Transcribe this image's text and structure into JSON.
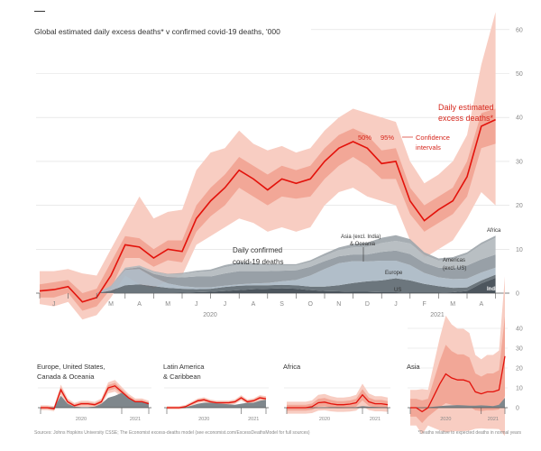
{
  "title": "Global estimated daily excess deaths* v confirmed covid-19 deaths, '000",
  "annotations": {
    "excess1": "Daily estimated",
    "excess2": "excess deaths*",
    "ci50": "50%",
    "ci95": "95%",
    "ci1": "Confidence",
    "ci2": "intervals",
    "conf1": "Daily confirmed",
    "conf2": "covid-19 deaths",
    "asia1": "Asia (excl. India)",
    "asia2": "& Oceania",
    "europe": "Europe",
    "amer1": "Americas",
    "amer2": "(excl. US)",
    "us": "US",
    "africa": "Africa",
    "india": "India"
  },
  "source": "Sources: Johns Hopkins University CSSE; The Economist excess-deaths model (see economist.com/ExcessDeathsModel for full sources)",
  "footnote": "*Deaths relative to expected deaths in normal years",
  "colors": {
    "line": "#e3120b",
    "band50": "#f2a797",
    "band95": "#f8cdc2",
    "us": "#5f6a72",
    "europe": "#aab9c4",
    "americas": "#8f989f",
    "asia": "#b3babe",
    "africa": "#9ea6ab",
    "india": "#3e4850"
  },
  "chart_data": [
    {
      "type": "area",
      "title": "Global estimated daily excess deaths* v confirmed covid-19 deaths, '000",
      "ylim": [
        -5,
        65
      ],
      "yticks": [
        0,
        10,
        20,
        30,
        40,
        50,
        60
      ],
      "grid": true,
      "x": [
        "2020-01-01",
        "2020-01-15",
        "2020-02-01",
        "2020-02-15",
        "2020-03-01",
        "2020-03-15",
        "2020-04-01",
        "2020-04-15",
        "2020-05-01",
        "2020-05-15",
        "2020-06-01",
        "2020-06-15",
        "2020-07-01",
        "2020-07-15",
        "2020-08-01",
        "2020-08-15",
        "2020-09-01",
        "2020-09-15",
        "2020-10-01",
        "2020-10-15",
        "2020-11-01",
        "2020-11-15",
        "2020-12-01",
        "2020-12-15",
        "2021-01-01",
        "2021-01-15",
        "2021-02-01",
        "2021-02-15",
        "2021-03-01",
        "2021-03-15",
        "2021-04-01",
        "2021-04-15",
        "2021-05-01"
      ],
      "month_labels": [
        "J",
        "",
        "M",
        "A",
        "M",
        "J",
        "J",
        "A",
        "S",
        "O",
        "N",
        "D",
        "J",
        "F",
        "M",
        "A"
      ],
      "year_labels": [
        "2020",
        "2021"
      ],
      "excess": {
        "central": [
          0.5,
          0.8,
          1.5,
          -2,
          -1,
          4,
          11,
          10.5,
          8,
          10,
          9.5,
          17,
          21,
          24,
          28,
          26,
          23.5,
          26,
          25,
          26,
          30,
          33,
          34.5,
          33,
          29.5,
          30,
          21,
          16.5,
          19,
          21,
          26.5,
          38,
          39.5
        ],
        "hi50": [
          2,
          2.5,
          3,
          0,
          1,
          7,
          13,
          12.5,
          10,
          12,
          12,
          20,
          24,
          27,
          31,
          29,
          27,
          29,
          28,
          29,
          33,
          36,
          37.5,
          36,
          32.5,
          33,
          24,
          20,
          22,
          24,
          30,
          41,
          42
        ],
        "lo50": [
          -1,
          -1,
          0,
          -4,
          -3,
          1,
          8,
          8,
          6,
          7.5,
          7,
          14,
          17.5,
          20,
          24,
          22,
          20,
          22,
          21.5,
          22,
          26,
          29,
          31,
          29,
          26,
          26,
          18,
          14,
          16,
          18,
          22,
          33,
          34
        ],
        "hi95": [
          5,
          5,
          5.5,
          4.5,
          4,
          10,
          16,
          22,
          17,
          18.5,
          19,
          28,
          32,
          33,
          37,
          34,
          32.5,
          33.5,
          32,
          33,
          37,
          40,
          42,
          41,
          40,
          39,
          30,
          25,
          27,
          30,
          36,
          52,
          64
        ],
        "lo95": [
          -2.5,
          -3,
          -2,
          -6,
          -5,
          -1,
          4,
          2,
          1,
          3,
          4,
          11,
          13,
          15,
          17,
          16,
          14,
          15,
          14,
          15,
          20,
          23,
          24,
          22,
          21,
          20,
          12,
          8,
          10,
          12,
          17,
          23,
          20
        ]
      },
      "confirmed": [
        {
          "name": "India",
          "key": "india",
          "values": [
            0,
            0,
            0,
            0,
            0,
            0,
            0,
            0,
            0,
            0,
            0.1,
            0.2,
            0.3,
            0.5,
            0.7,
            0.9,
            1,
            1.1,
            1,
            0.7,
            0.5,
            0.4,
            0.3,
            0.3,
            0.2,
            0.2,
            0.1,
            0.1,
            0.1,
            0.2,
            0.5,
            2.2,
            3.5
          ]
        },
        {
          "name": "US",
          "key": "us",
          "values": [
            0,
            0,
            0,
            0,
            0,
            0.6,
            1.8,
            2,
            1.6,
            1.2,
            0.9,
            0.7,
            0.7,
            0.9,
            1,
            0.9,
            0.8,
            0.8,
            0.8,
            0.8,
            1,
            1.4,
            2,
            2.4,
            2.7,
            3.2,
            2.8,
            2,
            1.5,
            1,
            0.8,
            0.7,
            0.7
          ]
        },
        {
          "name": "Europe",
          "key": "europe",
          "values": [
            0,
            0,
            0,
            0,
            0,
            1,
            3.5,
            3.5,
            2,
            1,
            0.6,
            0.4,
            0.3,
            0.3,
            0.3,
            0.4,
            0.5,
            0.8,
            1.2,
            2.5,
            4,
            5,
            5,
            4.5,
            4.5,
            4,
            3.5,
            2.5,
            2,
            2,
            2,
            1.8,
            1.6
          ]
        },
        {
          "name": "Americas (excl. US)",
          "key": "americas",
          "values": [
            0,
            0,
            0,
            0,
            0,
            0,
            0.2,
            0.4,
            0.8,
            1.5,
            2,
            2.5,
            2.5,
            2.8,
            3,
            2.8,
            2.7,
            2.4,
            2.2,
            2,
            1.8,
            1.6,
            1.5,
            1.6,
            2,
            2.3,
            2.5,
            2.3,
            2.2,
            2.5,
            3,
            3,
            3
          ]
        },
        {
          "name": "Asia (excl. India) & Oceania",
          "key": "asia",
          "values": [
            0,
            0,
            0,
            0,
            0,
            0.1,
            0.3,
            0.4,
            0.5,
            0.6,
            0.8,
            1,
            1.2,
            1.4,
            1.5,
            1.4,
            1.3,
            1.2,
            1.1,
            1.1,
            1.2,
            1.4,
            1.6,
            1.7,
            2,
            2.2,
            2.4,
            1.8,
            1.6,
            2,
            2.5,
            3.3,
            3.8
          ]
        },
        {
          "name": "Africa",
          "key": "africa",
          "values": [
            0,
            0,
            0,
            0,
            0,
            0,
            0,
            0,
            0.1,
            0.1,
            0.2,
            0.3,
            0.4,
            0.5,
            0.5,
            0.4,
            0.3,
            0.3,
            0.3,
            0.4,
            0.5,
            0.6,
            0.8,
            1,
            1.2,
            1.3,
            1,
            0.6,
            0.5,
            0.5,
            0.5,
            0.5,
            0.5
          ]
        }
      ]
    },
    {
      "type": "area",
      "panels": [
        {
          "title1": "Europe, United States,",
          "title2": "Canada & Oceania",
          "excess": [
            0,
            0,
            -0.5,
            9,
            3,
            1,
            2,
            2,
            1.5,
            3,
            10,
            11,
            8,
            5,
            3,
            3,
            2
          ],
          "band": 1.2,
          "confirmed": [
            0,
            0,
            0,
            6,
            2,
            0.5,
            0.3,
            0.3,
            0.5,
            2,
            5,
            6,
            7.5,
            5,
            3,
            3,
            2.5
          ]
        },
        {
          "title1": "Latin America",
          "title2": "& Caribbean",
          "excess": [
            0,
            0,
            0,
            0.5,
            2,
            3.5,
            4,
            3,
            2.5,
            2.5,
            2.5,
            3,
            5,
            3,
            3.5,
            5,
            4.5
          ],
          "band": 0.8,
          "confirmed": [
            0,
            0,
            0,
            0.2,
            1,
            2,
            2.5,
            2.5,
            2.2,
            2,
            1.7,
            1.5,
            2,
            2.5,
            2.5,
            3.5,
            4
          ]
        },
        {
          "title1": "Africa",
          "title2": "",
          "excess": [
            0,
            0,
            0,
            0,
            0.5,
            2.5,
            2.8,
            2,
            1.5,
            1.5,
            1.8,
            2.5,
            6.5,
            3,
            2,
            2,
            1.5
          ],
          "band": 3,
          "confirmed": [
            0,
            0,
            0,
            0,
            0,
            0.1,
            0.2,
            0.3,
            0.3,
            0.2,
            0.2,
            0.3,
            0.8,
            0.5,
            0.4,
            0.3,
            0.3
          ]
        },
        {
          "title1": "Asia",
          "title2": "",
          "excess": [
            0,
            0,
            -2,
            0,
            6,
            12,
            17,
            15,
            14,
            14,
            13,
            8,
            7,
            8,
            8,
            9,
            26
          ],
          "band": 9,
          "confirmed": [
            0,
            0,
            0,
            0.2,
            0.5,
            0.8,
            1,
            1.2,
            1.3,
            1.2,
            1,
            1,
            1.2,
            1,
            0.8,
            1.5,
            5
          ]
        }
      ],
      "yticks": [
        0,
        10,
        20,
        30,
        40
      ],
      "ylim": [
        -5,
        42
      ],
      "year_labels": [
        "2020",
        "2021"
      ]
    }
  ]
}
